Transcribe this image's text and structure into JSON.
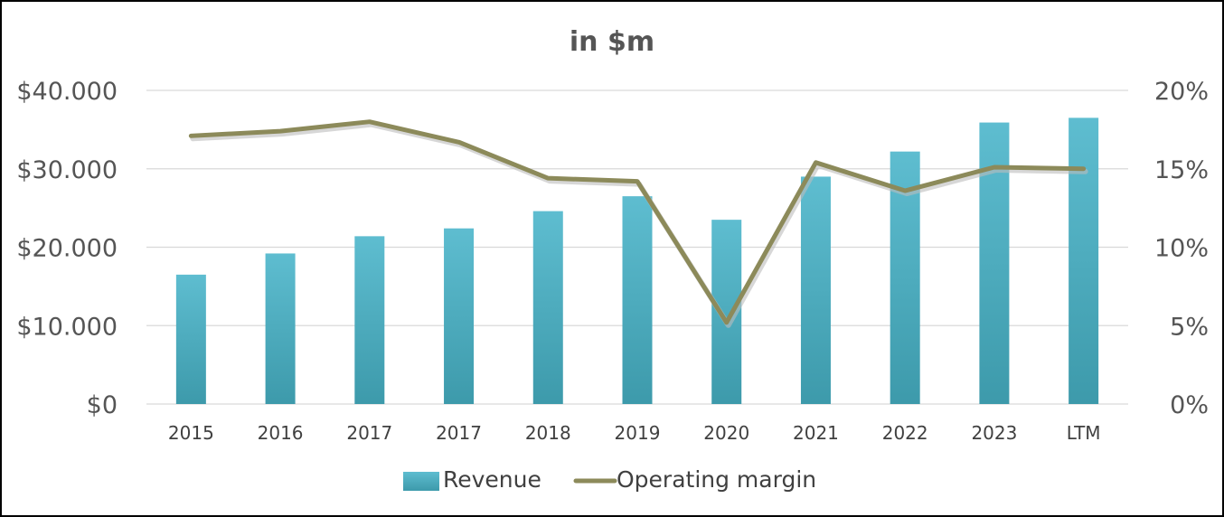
{
  "chart_data": {
    "type": "bar",
    "title": "in $m",
    "categories": [
      "2015",
      "2016",
      "2017",
      "2017",
      "2018",
      "2019",
      "2020",
      "2021",
      "2022",
      "2023",
      "LTM"
    ],
    "series": [
      {
        "name": "Revenue",
        "type": "bar",
        "axis": "left",
        "values": [
          16500,
          19200,
          21400,
          22400,
          24600,
          26500,
          23500,
          29000,
          32200,
          35900,
          36500
        ]
      },
      {
        "name": "Operating margin",
        "type": "line",
        "axis": "right",
        "values": [
          0.171,
          0.174,
          0.18,
          0.167,
          0.144,
          0.142,
          0.052,
          0.154,
          0.136,
          0.151,
          0.15
        ]
      }
    ],
    "y_left": {
      "ylim": [
        0,
        40000
      ],
      "ticks": [
        0,
        10000,
        20000,
        30000,
        40000
      ],
      "tick_labels": [
        "$0",
        "$10.000",
        "$20.000",
        "$30.000",
        "$40.000"
      ]
    },
    "y_right": {
      "ylim": [
        0,
        0.2
      ],
      "ticks": [
        0,
        0.05,
        0.1,
        0.15,
        0.2
      ],
      "tick_labels": [
        "0%",
        "5%",
        "10%",
        "15%",
        "20%"
      ]
    },
    "grid": true,
    "legend": "bottom",
    "colors": {
      "bar_top": "#5ebdd0",
      "bar_bottom": "#3d9aab",
      "line": "#8c8a5a",
      "line_shadow": "#bdbdbd",
      "grid": "#d9d9d9"
    }
  }
}
